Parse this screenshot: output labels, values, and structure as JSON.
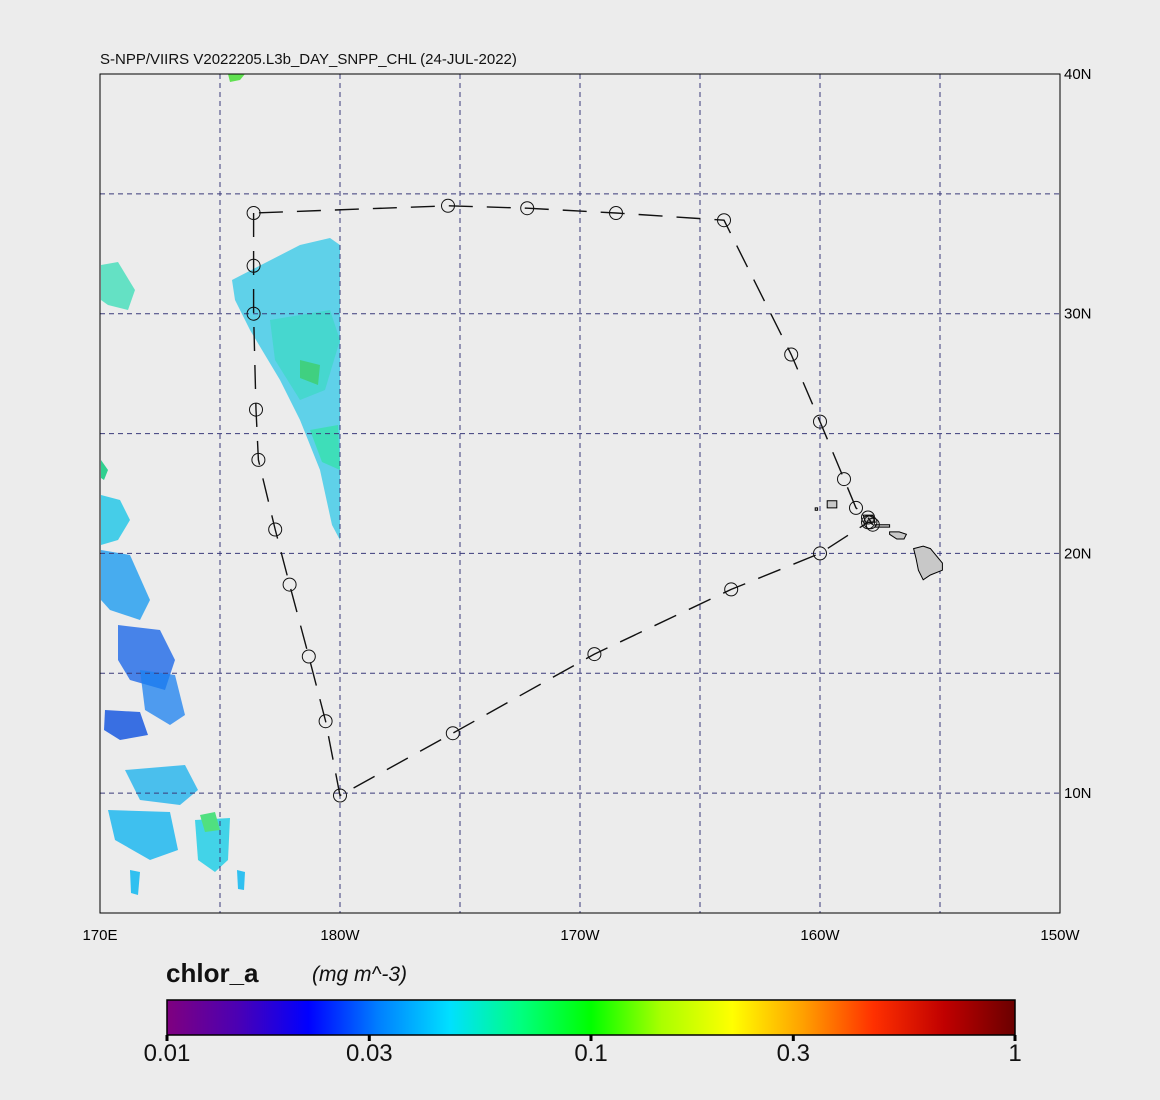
{
  "title": "S-NPP/VIIRS V2022205.L3b_DAY_SNPP_CHL (24-JUL-2022)",
  "map": {
    "lon_range": [
      170,
      210
    ],
    "lat_range": [
      5,
      40
    ],
    "lat_labels": [
      {
        "lat": 40,
        "text": "40N"
      },
      {
        "lat": 30,
        "text": "30N"
      },
      {
        "lat": 20,
        "text": "20N"
      },
      {
        "lat": 10,
        "text": "10N"
      }
    ],
    "lon_labels": [
      {
        "lon": 170,
        "text": "170E"
      },
      {
        "lon": 180,
        "text": "180W"
      },
      {
        "lon": 190,
        "text": "170W"
      },
      {
        "lon": 200,
        "text": "160W"
      },
      {
        "lon": 210,
        "text": "150W"
      }
    ],
    "grid_lons": [
      175,
      180,
      185,
      190,
      195,
      200,
      205
    ],
    "grid_lats": [
      10,
      15,
      20,
      25,
      30,
      35
    ],
    "track_points": [
      [
        176.4,
        34.2
      ],
      [
        176.4,
        32.0
      ],
      [
        176.4,
        30.0
      ],
      [
        176.5,
        26.0
      ],
      [
        176.6,
        23.9
      ],
      [
        177.3,
        21.0
      ],
      [
        177.9,
        18.7
      ],
      [
        178.7,
        15.7
      ],
      [
        179.4,
        13.0
      ],
      [
        180.0,
        9.9
      ],
      [
        184.7,
        12.5
      ],
      [
        190.6,
        15.8
      ],
      [
        196.3,
        18.5
      ],
      [
        200.0,
        20.0
      ],
      [
        202.0,
        21.3
      ],
      [
        202.1,
        21.3
      ],
      [
        202.2,
        21.2
      ],
      [
        202.0,
        21.5
      ],
      [
        201.5,
        21.9
      ],
      [
        201.0,
        23.1
      ],
      [
        200.0,
        25.5
      ],
      [
        198.8,
        28.3
      ],
      [
        196.0,
        33.9
      ],
      [
        191.5,
        34.2
      ],
      [
        187.8,
        34.4
      ],
      [
        184.5,
        34.5
      ],
      [
        176.4,
        34.2
      ]
    ],
    "islands": [
      [
        [
          203.9,
          20.2
        ],
        [
          204.3,
          20.3
        ],
        [
          204.6,
          20.2
        ],
        [
          205.1,
          19.6
        ],
        [
          205.1,
          19.3
        ],
        [
          204.6,
          19.1
        ],
        [
          204.3,
          18.9
        ],
        [
          204.1,
          19.3
        ],
        [
          204.0,
          19.8
        ]
      ],
      [
        [
          202.9,
          20.9
        ],
        [
          203.3,
          20.9
        ],
        [
          203.6,
          20.8
        ],
        [
          203.5,
          20.6
        ],
        [
          203.2,
          20.6
        ],
        [
          202.9,
          20.8
        ]
      ],
      [
        [
          202.3,
          21.2
        ],
        [
          202.9,
          21.2
        ],
        [
          202.9,
          21.1
        ],
        [
          202.3,
          21.1
        ]
      ],
      [
        [
          201.8,
          21.6
        ],
        [
          202.2,
          21.6
        ],
        [
          202.3,
          21.3
        ],
        [
          201.9,
          21.3
        ]
      ],
      [
        [
          200.3,
          22.2
        ],
        [
          200.7,
          22.2
        ],
        [
          200.7,
          21.9
        ],
        [
          200.3,
          21.9
        ]
      ],
      [
        [
          199.8,
          21.9
        ],
        [
          199.9,
          21.9
        ],
        [
          199.9,
          21.8
        ],
        [
          199.8,
          21.8
        ]
      ]
    ],
    "land_color": "#c8c8c8",
    "grid_color": "#3a3a7a"
  },
  "colorbar": {
    "variable": "chlor_a",
    "units": "(mg m^-3)",
    "scale": "log",
    "range": [
      0.01,
      1
    ],
    "ticks": [
      {
        "value": 0.01,
        "text": "0.01"
      },
      {
        "value": 0.03,
        "text": "0.03"
      },
      {
        "value": 0.1,
        "text": "0.1"
      },
      {
        "value": 0.3,
        "text": "0.3"
      },
      {
        "value": 1,
        "text": "1"
      }
    ],
    "colors": [
      "#7f007f",
      "#4b00b4",
      "#0000ff",
      "#0080ff",
      "#00e0ff",
      "#00ff80",
      "#00ff00",
      "#aaff00",
      "#ffff00",
      "#ffa000",
      "#ff3000",
      "#c00000",
      "#6a0000"
    ]
  }
}
